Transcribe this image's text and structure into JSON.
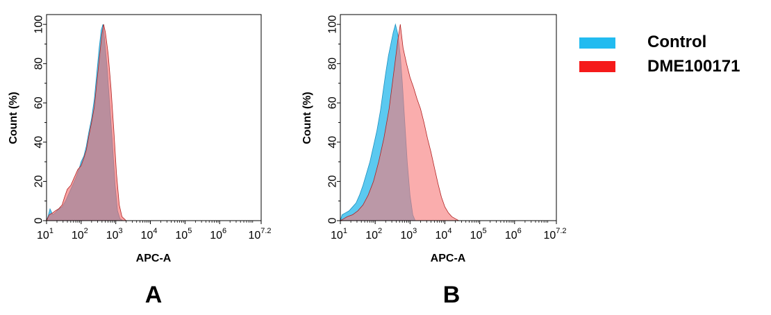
{
  "legend": [
    {
      "label": "Control",
      "color": "#22bbf0"
    },
    {
      "label": "DME100171",
      "color": "#f51a1a"
    }
  ],
  "chart_data": [
    {
      "type": "area",
      "panel_label": "A",
      "xlabel": "APC-A",
      "ylabel": "Count  (%)",
      "xscale": "log",
      "xlim": [
        1,
        7.2
      ],
      "ylim": [
        0,
        105
      ],
      "xticks": [
        {
          "base": "10",
          "exp": "1"
        },
        {
          "base": "10",
          "exp": "2"
        },
        {
          "base": "10",
          "exp": "3"
        },
        {
          "base": "10",
          "exp": "4"
        },
        {
          "base": "10",
          "exp": "5"
        },
        {
          "base": "10",
          "exp": "6"
        },
        {
          "base": "10",
          "exp": "7.2"
        }
      ],
      "yticks": [
        "0",
        "20",
        "40",
        "60",
        "80",
        "100"
      ],
      "series": [
        {
          "name": "Control",
          "fill": "#5bc9f0",
          "stroke": "#1c8fbf",
          "points": [
            [
              1.0,
              0
            ],
            [
              1.04,
              2
            ],
            [
              1.1,
              6
            ],
            [
              1.18,
              3
            ],
            [
              1.25,
              4
            ],
            [
              1.35,
              6
            ],
            [
              1.45,
              7
            ],
            [
              1.55,
              10
            ],
            [
              1.65,
              14
            ],
            [
              1.75,
              18
            ],
            [
              1.85,
              22
            ],
            [
              1.95,
              27
            ],
            [
              2.0,
              30
            ],
            [
              2.08,
              33
            ],
            [
              2.15,
              38
            ],
            [
              2.22,
              45
            ],
            [
              2.3,
              52
            ],
            [
              2.38,
              62
            ],
            [
              2.45,
              75
            ],
            [
              2.52,
              88
            ],
            [
              2.58,
              97
            ],
            [
              2.63,
              100
            ],
            [
              2.68,
              92
            ],
            [
              2.75,
              78
            ],
            [
              2.82,
              60
            ],
            [
              2.9,
              40
            ],
            [
              2.98,
              18
            ],
            [
              3.05,
              5
            ],
            [
              3.12,
              1
            ],
            [
              3.2,
              0
            ],
            [
              7.2,
              0
            ]
          ]
        },
        {
          "name": "DME100171",
          "fill": "#f56a6a",
          "stroke": "#b02020",
          "points": [
            [
              1.0,
              0
            ],
            [
              1.08,
              3
            ],
            [
              1.18,
              4
            ],
            [
              1.25,
              5
            ],
            [
              1.35,
              6
            ],
            [
              1.45,
              8
            ],
            [
              1.52,
              12
            ],
            [
              1.6,
              16
            ],
            [
              1.7,
              18
            ],
            [
              1.8,
              22
            ],
            [
              1.9,
              26
            ],
            [
              2.0,
              28
            ],
            [
              2.08,
              32
            ],
            [
              2.15,
              36
            ],
            [
              2.22,
              43
            ],
            [
              2.3,
              50
            ],
            [
              2.38,
              58
            ],
            [
              2.45,
              70
            ],
            [
              2.52,
              82
            ],
            [
              2.6,
              95
            ],
            [
              2.65,
              100
            ],
            [
              2.7,
              96
            ],
            [
              2.78,
              85
            ],
            [
              2.86,
              68
            ],
            [
              2.94,
              47
            ],
            [
              3.02,
              24
            ],
            [
              3.1,
              8
            ],
            [
              3.18,
              2
            ],
            [
              3.3,
              0
            ],
            [
              7.2,
              0
            ]
          ]
        }
      ]
    },
    {
      "type": "area",
      "panel_label": "B",
      "xlabel": "APC-A",
      "ylabel": "Count  (%)",
      "xscale": "log",
      "xlim": [
        1,
        7.2
      ],
      "ylim": [
        0,
        105
      ],
      "xticks": [
        {
          "base": "10",
          "exp": "1"
        },
        {
          "base": "10",
          "exp": "2"
        },
        {
          "base": "10",
          "exp": "3"
        },
        {
          "base": "10",
          "exp": "4"
        },
        {
          "base": "10",
          "exp": "5"
        },
        {
          "base": "10",
          "exp": "6"
        },
        {
          "base": "10",
          "exp": "7.2"
        }
      ],
      "yticks": [
        "0",
        "20",
        "40",
        "60",
        "80",
        "100"
      ],
      "series": [
        {
          "name": "Control",
          "fill": "#5bc9f0",
          "stroke": "#1c8fbf",
          "points": [
            [
              1.0,
              0
            ],
            [
              1.05,
              3
            ],
            [
              1.15,
              4
            ],
            [
              1.25,
              5
            ],
            [
              1.35,
              7
            ],
            [
              1.45,
              9
            ],
            [
              1.55,
              13
            ],
            [
              1.65,
              18
            ],
            [
              1.75,
              24
            ],
            [
              1.85,
              30
            ],
            [
              1.95,
              38
            ],
            [
              2.05,
              46
            ],
            [
              2.15,
              56
            ],
            [
              2.22,
              65
            ],
            [
              2.3,
              75
            ],
            [
              2.38,
              84
            ],
            [
              2.45,
              90
            ],
            [
              2.52,
              96
            ],
            [
              2.58,
              100
            ],
            [
              2.65,
              95
            ],
            [
              2.72,
              84
            ],
            [
              2.78,
              70
            ],
            [
              2.85,
              50
            ],
            [
              2.92,
              30
            ],
            [
              3.0,
              13
            ],
            [
              3.08,
              3
            ],
            [
              3.15,
              0
            ],
            [
              7.2,
              0
            ]
          ]
        },
        {
          "name": "DME100171",
          "fill": "#f77b7b",
          "stroke": "#b02020",
          "points": [
            [
              1.0,
              0
            ],
            [
              1.1,
              1
            ],
            [
              1.2,
              2
            ],
            [
              1.35,
              3
            ],
            [
              1.5,
              5
            ],
            [
              1.65,
              8
            ],
            [
              1.8,
              13
            ],
            [
              1.95,
              20
            ],
            [
              2.1,
              30
            ],
            [
              2.25,
              42
            ],
            [
              2.4,
              57
            ],
            [
              2.55,
              78
            ],
            [
              2.65,
              92
            ],
            [
              2.72,
              100
            ],
            [
              2.8,
              88
            ],
            [
              2.9,
              80
            ],
            [
              3.0,
              73
            ],
            [
              3.1,
              68
            ],
            [
              3.2,
              62
            ],
            [
              3.3,
              57
            ],
            [
              3.4,
              50
            ],
            [
              3.5,
              42
            ],
            [
              3.6,
              35
            ],
            [
              3.7,
              27
            ],
            [
              3.8,
              19
            ],
            [
              3.9,
              12
            ],
            [
              4.0,
              7
            ],
            [
              4.1,
              4
            ],
            [
              4.2,
              2
            ],
            [
              4.3,
              1
            ],
            [
              4.4,
              0
            ],
            [
              7.2,
              0
            ]
          ]
        }
      ]
    }
  ]
}
